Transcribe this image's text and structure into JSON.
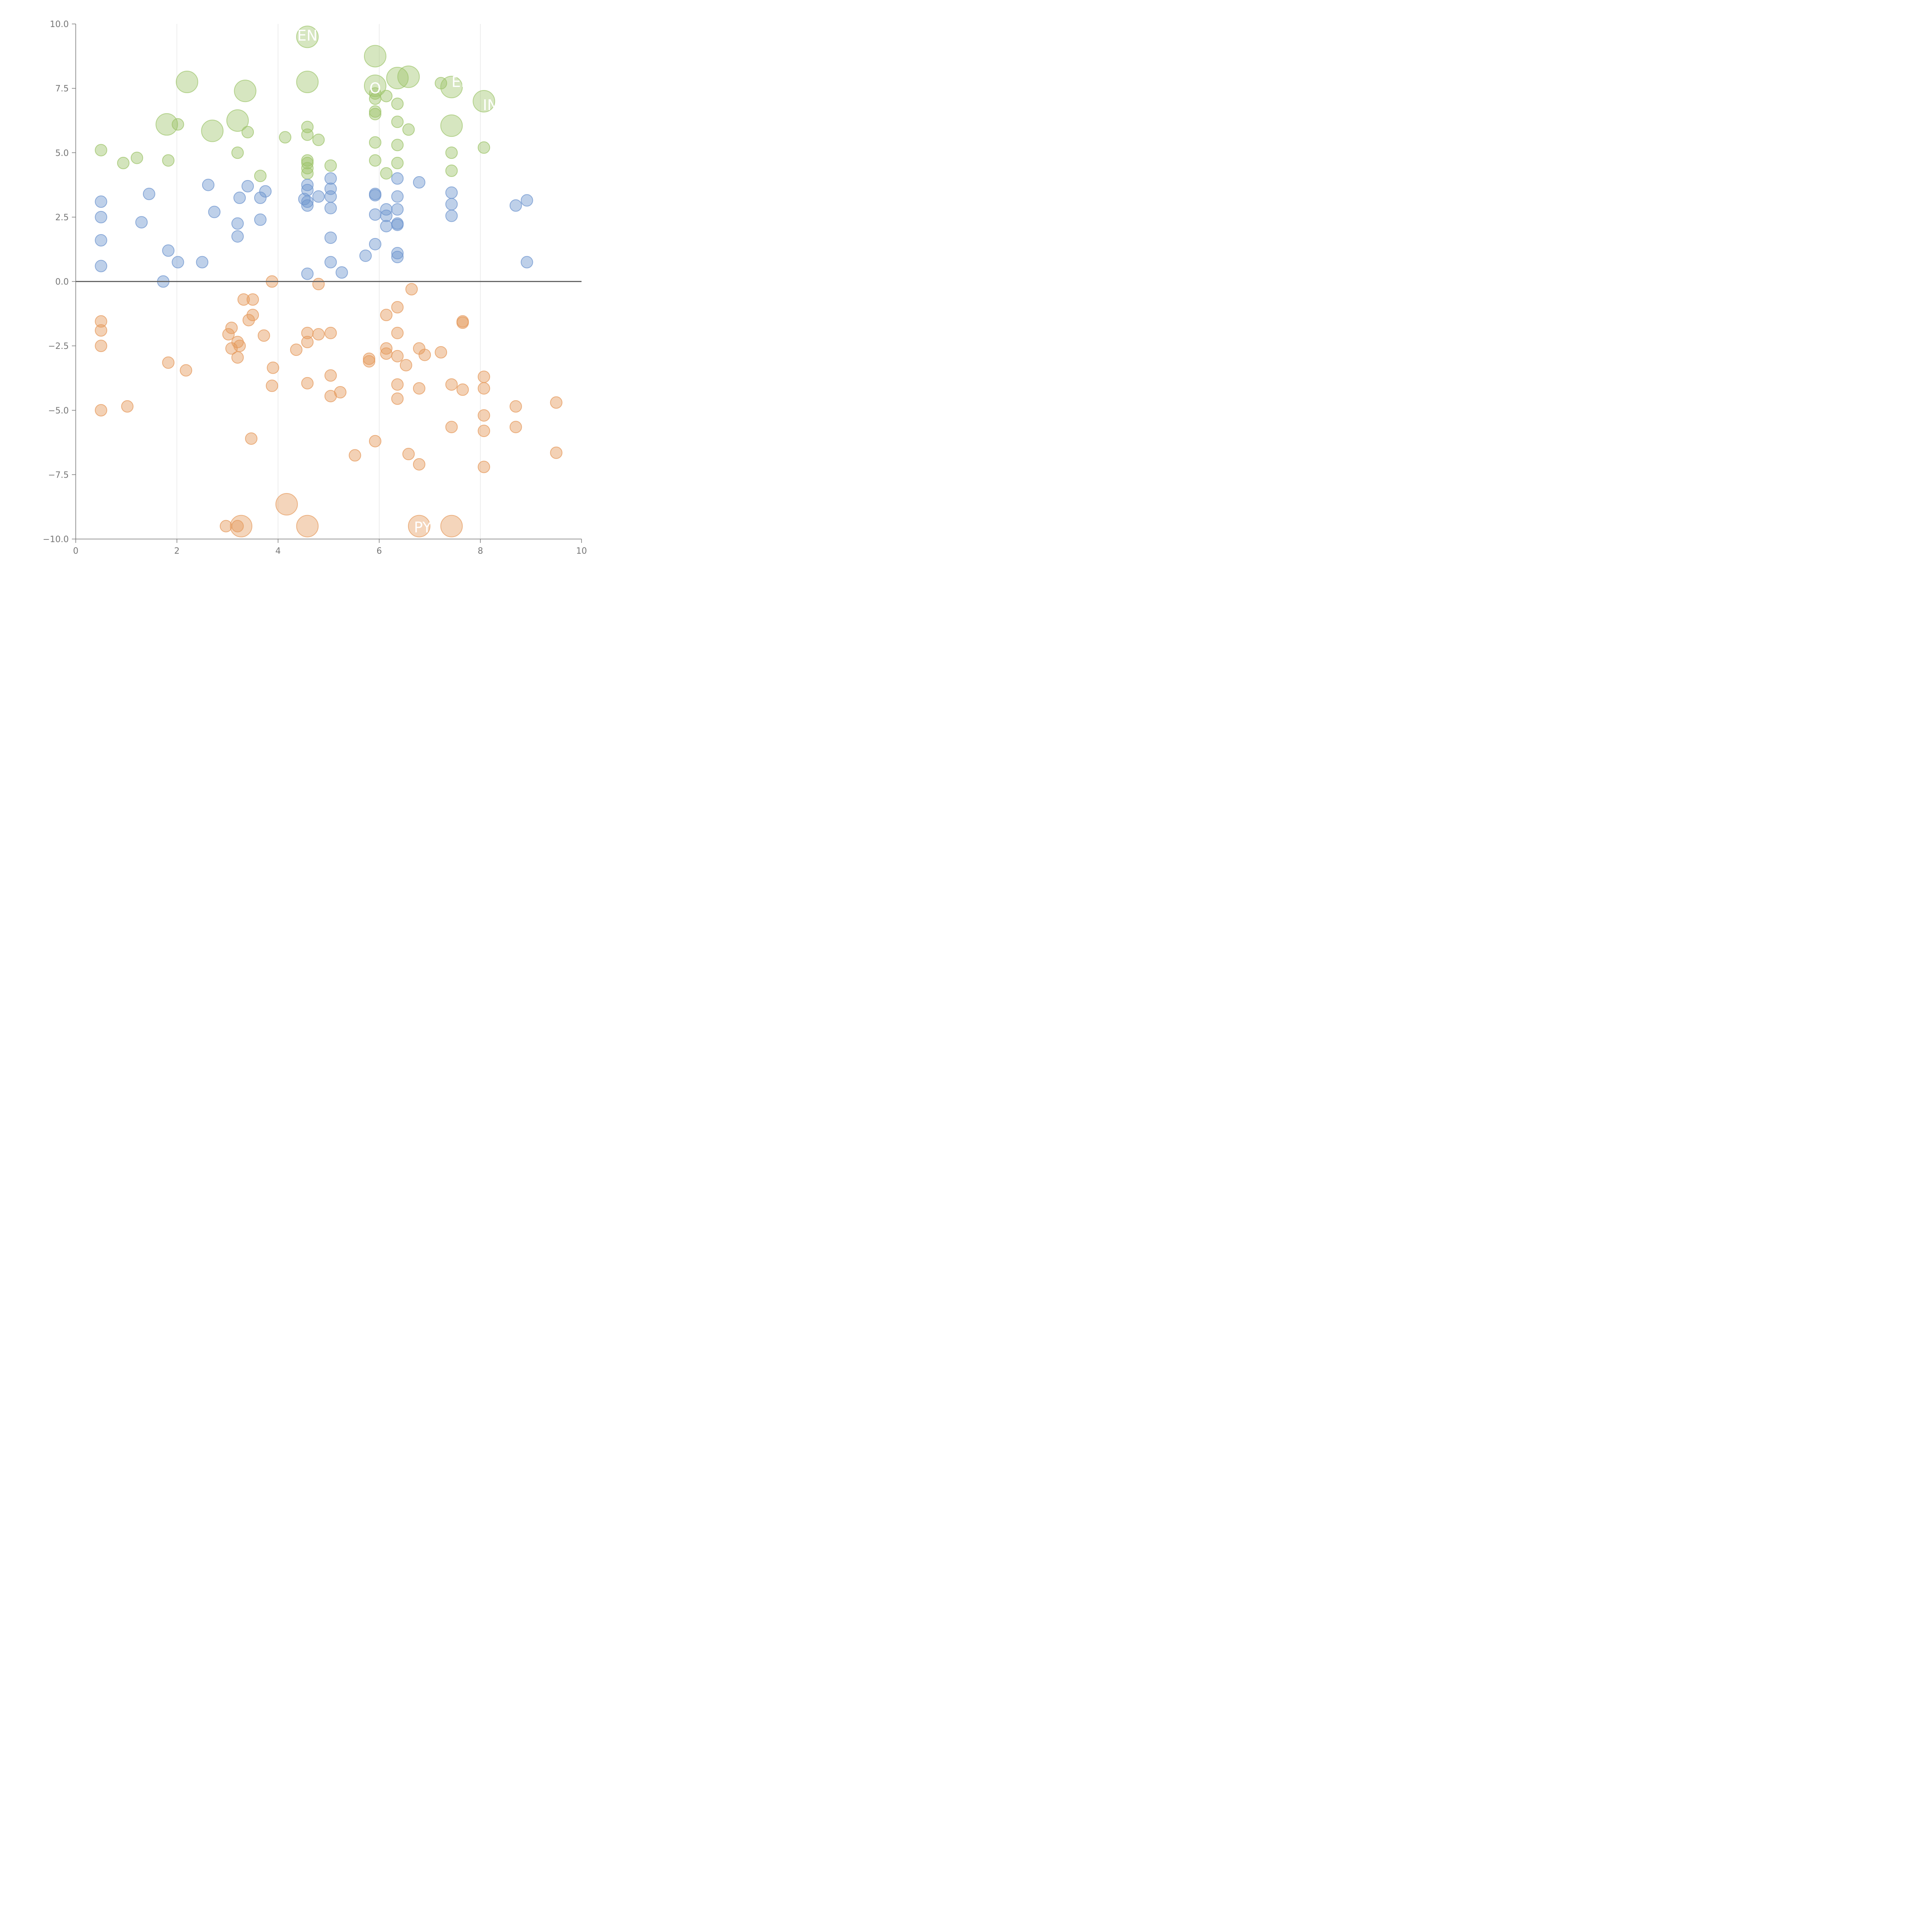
{
  "chart_data": {
    "type": "scatter",
    "title": "",
    "xlabel": "",
    "ylabel": "",
    "xlim": [
      0,
      10
    ],
    "ylim": [
      -10,
      10
    ],
    "x_ticks": [
      "0",
      "2",
      "4",
      "6",
      "8",
      "10"
    ],
    "y_ticks": [
      "10.0",
      "7.5",
      "5.0",
      "2.5",
      "0.0",
      "−2.5",
      "−5.0",
      "−7.5",
      "−10.0"
    ],
    "grid_x": [
      2,
      4,
      6,
      8
    ],
    "zero_line": 0,
    "colors": {
      "green": "#9dc46a",
      "blue": "#6f96cf",
      "orange": "#e59a5c",
      "label": "#ffffff"
    },
    "series": [
      {
        "name": "green",
        "color": "#9dc46a",
        "points": [
          [
            0.5,
            5.1
          ],
          [
            0.94,
            4.6
          ],
          [
            1.21,
            4.8
          ],
          [
            1.83,
            4.7
          ],
          [
            2.02,
            6.1
          ],
          [
            3.2,
            5.0
          ],
          [
            3.4,
            5.8
          ],
          [
            3.65,
            4.1
          ],
          [
            4.14,
            5.6
          ],
          [
            4.58,
            6.0
          ],
          [
            4.58,
            5.7
          ],
          [
            4.58,
            4.7
          ],
          [
            4.58,
            4.6
          ],
          [
            4.58,
            4.4
          ],
          [
            4.58,
            4.2
          ],
          [
            4.8,
            5.5
          ],
          [
            5.04,
            4.5
          ],
          [
            5.92,
            7.3
          ],
          [
            5.92,
            7.1
          ],
          [
            5.92,
            6.6
          ],
          [
            5.92,
            6.5
          ],
          [
            5.92,
            5.4
          ],
          [
            5.92,
            4.7
          ],
          [
            6.14,
            7.2
          ],
          [
            6.14,
            4.2
          ],
          [
            6.36,
            6.9
          ],
          [
            6.36,
            6.2
          ],
          [
            6.36,
            5.3
          ],
          [
            6.36,
            4.6
          ],
          [
            6.58,
            5.9
          ],
          [
            7.22,
            7.7
          ],
          [
            7.43,
            5.0
          ],
          [
            7.43,
            4.3
          ],
          [
            8.07,
            5.2
          ]
        ],
        "large_points": [
          [
            4.58,
            9.5
          ],
          [
            5.92,
            8.75
          ],
          [
            2.2,
            7.75
          ],
          [
            3.35,
            7.4
          ],
          [
            4.58,
            7.75
          ],
          [
            5.92,
            7.6
          ],
          [
            6.36,
            7.9
          ],
          [
            6.58,
            7.95
          ],
          [
            7.43,
            7.55
          ],
          [
            8.07,
            7.0
          ],
          [
            1.8,
            6.1
          ],
          [
            2.7,
            5.85
          ],
          [
            3.2,
            6.25
          ],
          [
            7.43,
            6.05
          ]
        ]
      },
      {
        "name": "blue",
        "color": "#6f96cf",
        "points": [
          [
            0.5,
            3.1
          ],
          [
            0.5,
            2.5
          ],
          [
            0.5,
            1.6
          ],
          [
            0.5,
            0.6
          ],
          [
            1.3,
            2.3
          ],
          [
            1.45,
            3.4
          ],
          [
            1.73,
            0.0
          ],
          [
            1.83,
            1.2
          ],
          [
            2.02,
            0.75
          ],
          [
            2.5,
            0.75
          ],
          [
            2.62,
            3.75
          ],
          [
            2.74,
            2.7
          ],
          [
            3.2,
            2.25
          ],
          [
            3.2,
            1.75
          ],
          [
            3.24,
            3.25
          ],
          [
            3.4,
            3.7
          ],
          [
            3.65,
            3.25
          ],
          [
            3.65,
            2.4
          ],
          [
            3.75,
            3.5
          ],
          [
            4.52,
            3.2
          ],
          [
            4.58,
            3.75
          ],
          [
            4.58,
            3.55
          ],
          [
            4.58,
            3.1
          ],
          [
            4.58,
            2.95
          ],
          [
            4.58,
            0.3
          ],
          [
            4.8,
            3.3
          ],
          [
            5.04,
            4.0
          ],
          [
            5.04,
            3.6
          ],
          [
            5.04,
            3.3
          ],
          [
            5.04,
            2.85
          ],
          [
            5.04,
            1.7
          ],
          [
            5.04,
            0.75
          ],
          [
            5.26,
            0.35
          ],
          [
            5.73,
            1.0
          ],
          [
            5.92,
            3.4
          ],
          [
            5.92,
            3.35
          ],
          [
            5.92,
            2.6
          ],
          [
            5.92,
            1.45
          ],
          [
            6.14,
            2.8
          ],
          [
            6.14,
            2.55
          ],
          [
            6.14,
            2.15
          ],
          [
            6.36,
            4.0
          ],
          [
            6.36,
            3.3
          ],
          [
            6.36,
            2.8
          ],
          [
            6.36,
            2.25
          ],
          [
            6.36,
            2.2
          ],
          [
            6.36,
            1.1
          ],
          [
            6.36,
            0.95
          ],
          [
            6.79,
            3.85
          ],
          [
            7.43,
            3.45
          ],
          [
            7.43,
            3.0
          ],
          [
            7.43,
            2.55
          ],
          [
            8.7,
            2.95
          ],
          [
            8.92,
            3.15
          ],
          [
            8.92,
            0.75
          ]
        ]
      },
      {
        "name": "orange",
        "color": "#e59a5c",
        "points": [
          [
            0.5,
            -1.55
          ],
          [
            0.5,
            -1.9
          ],
          [
            0.5,
            -2.5
          ],
          [
            0.5,
            -5.0
          ],
          [
            1.02,
            -4.85
          ],
          [
            1.83,
            -3.15
          ],
          [
            2.18,
            -3.45
          ],
          [
            3.02,
            -2.05
          ],
          [
            3.08,
            -1.8
          ],
          [
            3.08,
            -2.6
          ],
          [
            3.2,
            -2.35
          ],
          [
            3.2,
            -2.95
          ],
          [
            3.24,
            -2.5
          ],
          [
            3.32,
            -0.7
          ],
          [
            3.42,
            -1.5
          ],
          [
            3.5,
            -0.7
          ],
          [
            3.5,
            -1.3
          ],
          [
            3.47,
            -6.1
          ],
          [
            3.72,
            -2.1
          ],
          [
            3.88,
            0.0
          ],
          [
            3.9,
            -3.35
          ],
          [
            3.88,
            -4.05
          ],
          [
            4.36,
            -2.65
          ],
          [
            4.58,
            -2.0
          ],
          [
            4.58,
            -2.35
          ],
          [
            4.58,
            -3.95
          ],
          [
            4.8,
            -0.1
          ],
          [
            4.8,
            -2.05
          ],
          [
            5.04,
            -2.0
          ],
          [
            5.04,
            -3.65
          ],
          [
            5.04,
            -4.45
          ],
          [
            5.23,
            -4.3
          ],
          [
            5.52,
            -6.75
          ],
          [
            5.8,
            -3.0
          ],
          [
            5.8,
            -3.1
          ],
          [
            5.92,
            -6.2
          ],
          [
            6.14,
            -1.3
          ],
          [
            6.14,
            -2.6
          ],
          [
            6.14,
            -2.8
          ],
          [
            6.36,
            -1.0
          ],
          [
            6.36,
            -2.0
          ],
          [
            6.36,
            -2.9
          ],
          [
            6.36,
            -4.0
          ],
          [
            6.36,
            -4.55
          ],
          [
            6.53,
            -3.25
          ],
          [
            6.58,
            -6.7
          ],
          [
            6.64,
            -0.3
          ],
          [
            6.79,
            -2.6
          ],
          [
            6.79,
            -4.15
          ],
          [
            6.79,
            -7.1
          ],
          [
            6.9,
            -2.85
          ],
          [
            7.22,
            -2.75
          ],
          [
            7.43,
            -4.0
          ],
          [
            7.43,
            -5.65
          ],
          [
            7.65,
            -1.55
          ],
          [
            7.65,
            -1.6
          ],
          [
            7.65,
            -4.2
          ],
          [
            8.07,
            -3.7
          ],
          [
            8.07,
            -4.15
          ],
          [
            8.07,
            -5.2
          ],
          [
            8.07,
            -5.8
          ],
          [
            8.07,
            -7.2
          ],
          [
            8.7,
            -4.85
          ],
          [
            8.7,
            -5.65
          ],
          [
            9.5,
            -4.7
          ],
          [
            9.5,
            -6.65
          ],
          [
            2.97,
            -9.5
          ],
          [
            3.2,
            -9.5
          ]
        ],
        "large_points": [
          [
            4.17,
            -8.65
          ],
          [
            3.27,
            -9.5
          ],
          [
            4.58,
            -9.5
          ],
          [
            6.79,
            -9.5
          ],
          [
            7.43,
            -9.5
          ]
        ]
      }
    ],
    "annotations": [
      {
        "text": "EN",
        "x": 4.58,
        "y": 9.55
      },
      {
        "text": "EN",
        "x": 7.63,
        "y": 7.75
      },
      {
        "text": "O",
        "x": 5.92,
        "y": 7.5
      },
      {
        "text": "IN",
        "x": 8.2,
        "y": 6.85
      },
      {
        "text": "PYR",
        "x": 6.96,
        "y": -9.55
      }
    ]
  }
}
